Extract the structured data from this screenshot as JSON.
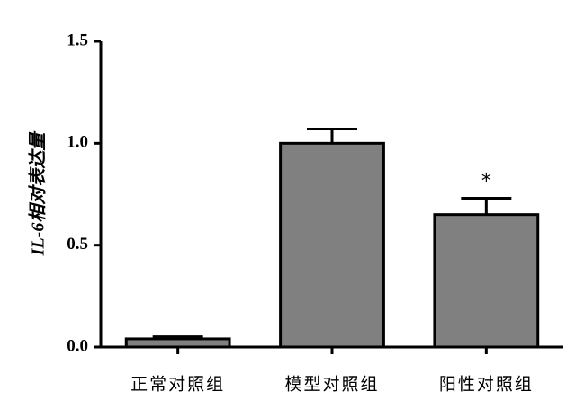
{
  "chart_data": {
    "type": "bar",
    "y_label": "IL-6相对表达量",
    "categories": [
      "正常对照组",
      "模型对照组",
      "阳性对照组"
    ],
    "values": [
      0.04,
      1.0,
      0.65
    ],
    "errors": [
      0.01,
      0.07,
      0.08
    ],
    "annotations": [
      null,
      null,
      "*"
    ],
    "color": "#808080",
    "ylim": [
      0,
      1.5
    ],
    "yticks": [
      {
        "value": 0,
        "label": "0.0"
      },
      {
        "value": 0.5,
        "label": "0.5"
      },
      {
        "value": 1,
        "label": "1.0"
      },
      {
        "value": 1.5,
        "label": "1.5"
      }
    ]
  }
}
